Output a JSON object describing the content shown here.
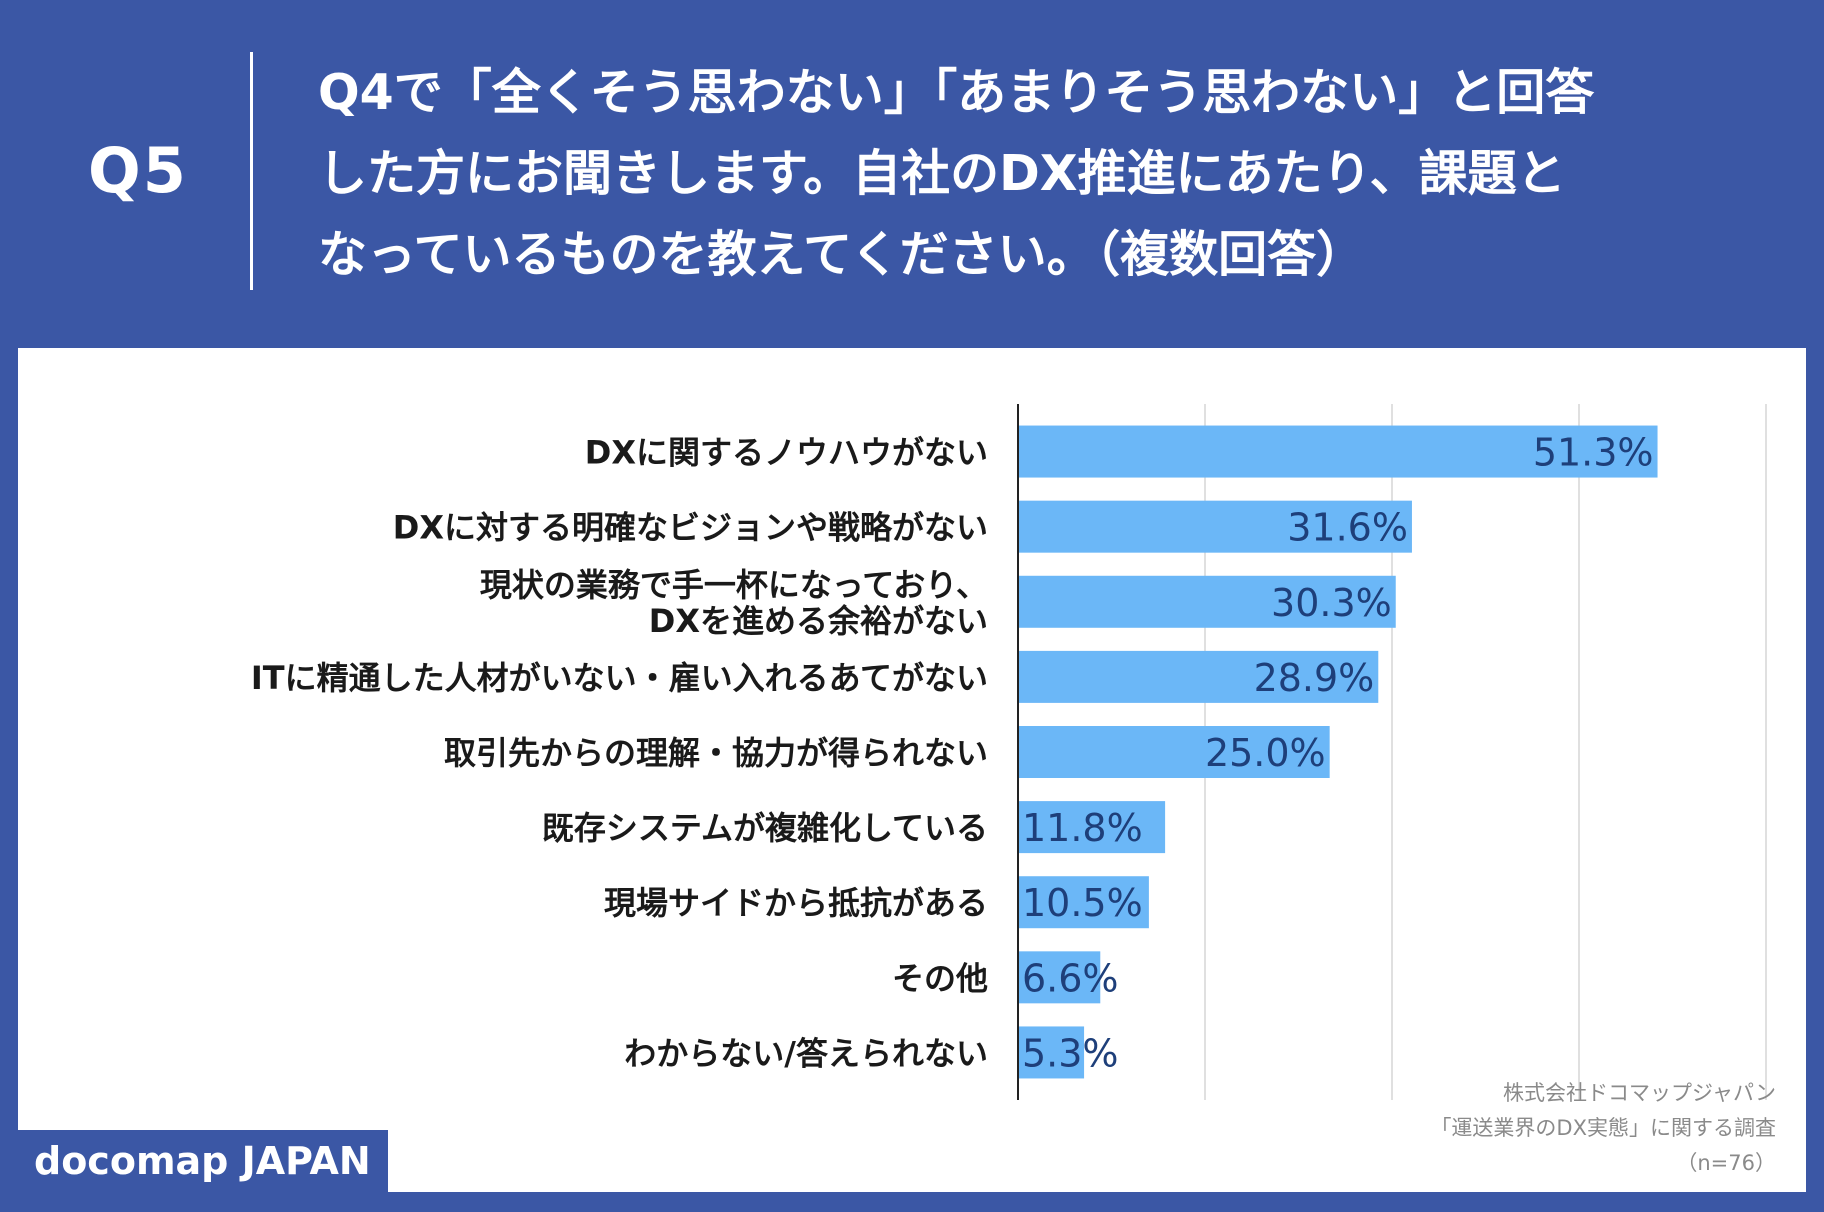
{
  "header": {
    "question_number": "Q5",
    "question_lines": [
      "Q4で「全くそう思わない」「あまりそう思わない」と回答",
      "した方にお聞きします。自社のDX推進にあたり、課題と",
      "なっているものを教えてください。（複数回答）"
    ]
  },
  "source": {
    "company": "株式会社ドコマップジャパン",
    "survey": "「運送業界のDX実態」に関する調査",
    "sample": "（n=76）"
  },
  "logo": {
    "text": "docomap JAPAN"
  },
  "colors": {
    "bar": "#6bb7f7",
    "background": "#3b57a5",
    "value_text": "#1e3f7a"
  },
  "chart_data": {
    "type": "bar",
    "orientation": "horizontal",
    "categories": [
      "DXに関するノウハウがない",
      "DXに対する明確なビジョンや戦略がない",
      "現状の業務で手一杯になっており、\nDXを進める余裕がない",
      "ITに精通した人材がいない・雇い入れるあてがない",
      "取引先からの理解・協力が得られない",
      "既存システムが複雑化している",
      "現場サイドから抵抗がある",
      "その他",
      "わからない/答えられない"
    ],
    "values": [
      51.3,
      31.6,
      30.3,
      28.9,
      25.0,
      11.8,
      10.5,
      6.6,
      5.3
    ],
    "value_labels": [
      "51.3%",
      "31.6%",
      "30.3%",
      "28.9%",
      "25.0%",
      "11.8%",
      "10.5%",
      "6.6%",
      "5.3%"
    ],
    "xlim": [
      0,
      60
    ],
    "grid": true,
    "grid_step": 15
  }
}
